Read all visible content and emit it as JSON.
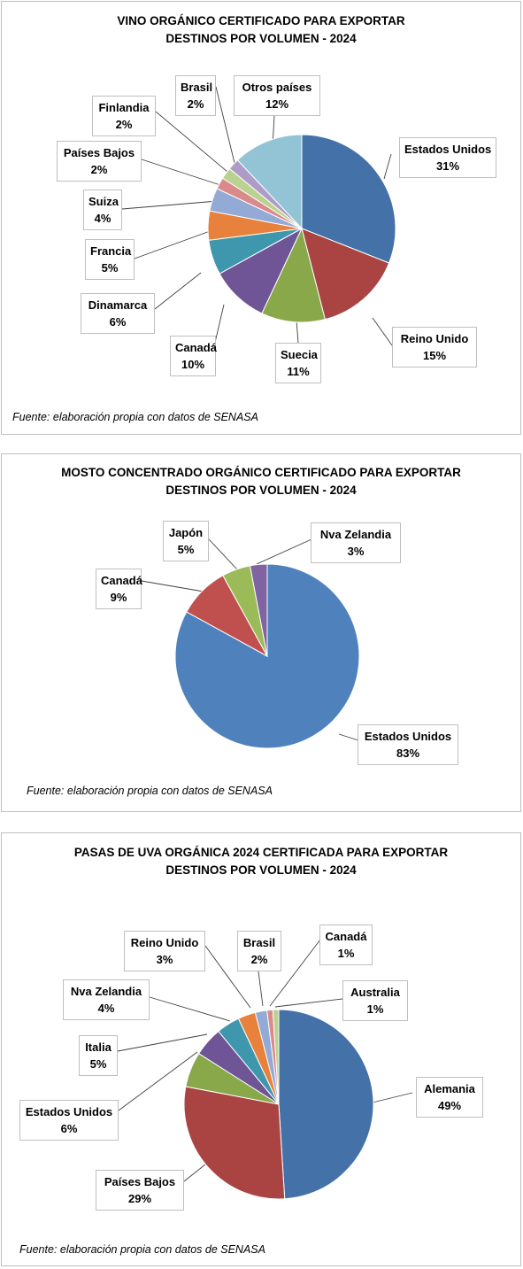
{
  "colors": {
    "estados_unidos_1": "#4472A8",
    "reino_unido": "#A94442",
    "suecia": "#89A84A",
    "canada_1": "#6F5596",
    "dinamarca": "#3F97AE",
    "francia": "#E7813C",
    "suiza": "#93A9D6",
    "paises_bajos_1": "#DA8A8B",
    "finlandia": "#BAD28F",
    "brasil_1": "#AE9CC8",
    "otros": "#93C4D6",
    "estados_unidos_2": "#4F81BD",
    "canada_2": "#C0504D",
    "japon": "#9BBB59",
    "nva_zelandia_2": "#8064A2",
    "alemania": "#4472A8",
    "paises_bajos_3": "#A94442",
    "estados_unidos_3": "#89A84A",
    "italia": "#6F5596",
    "nva_zelandia_3": "#3F97AE",
    "reino_unido_3": "#E7813C",
    "brasil_3": "#93A9D6",
    "canada_3": "#DA8A8B",
    "australia": "#BAD28F"
  },
  "chart_data": [
    {
      "type": "pie",
      "title": "VINO ORGÁNICO CERTIFICADO PARA EXPORTAR",
      "subtitle": "DESTINOS POR VOLUMEN - 2024",
      "source": "Fuente: elaboración propia con datos de SENASA",
      "labels": [
        "Estados Unidos",
        "Reino Unido",
        "Suecia",
        "Canadá",
        "Dinamarca",
        "Francia",
        "Suiza",
        "Países Bajos",
        "Finlandia",
        "Brasil",
        "Otros países"
      ],
      "values": [
        31,
        15,
        11,
        10,
        6,
        5,
        4,
        2,
        2,
        2,
        12
      ],
      "value_labels": [
        "31%",
        "15%",
        "11%",
        "10%",
        "6%",
        "5%",
        "4%",
        "2%",
        "2%",
        "2%",
        "12%"
      ],
      "colors": [
        "estados_unidos_1",
        "reino_unido",
        "suecia",
        "canada_1",
        "dinamarca",
        "francia",
        "suiza",
        "paises_bajos_1",
        "finlandia",
        "brasil_1",
        "otros"
      ]
    },
    {
      "type": "pie",
      "title": "MOSTO CONCENTRADO ORGÁNICO CERTIFICADO PARA EXPORTAR",
      "subtitle": "DESTINOS POR VOLUMEN - 2024",
      "source": "Fuente: elaboración propia con datos de SENASA",
      "labels": [
        "Estados Unidos",
        "Canadá",
        "Japón",
        "Nva Zelandia"
      ],
      "values": [
        83,
        9,
        5,
        3
      ],
      "value_labels": [
        "83%",
        "9%",
        "5%",
        "3%"
      ],
      "colors": [
        "estados_unidos_2",
        "canada_2",
        "japon",
        "nva_zelandia_2"
      ]
    },
    {
      "type": "pie",
      "title": "PASAS DE UVA ORGÁNICA 2024 CERTIFICADA PARA EXPORTAR",
      "subtitle": "DESTINOS POR VOLUMEN - 2024",
      "source": "Fuente: elaboración propia con datos de SENASA",
      "labels": [
        "Alemania",
        "Países Bajos",
        "Estados Unidos",
        "Italia",
        "Nva Zelandia",
        "Reino Unido",
        "Brasil",
        "Canadá",
        "Australia"
      ],
      "values": [
        49,
        29,
        6,
        5,
        4,
        3,
        2,
        1,
        1
      ],
      "value_labels": [
        "49%",
        "29%",
        "6%",
        "5%",
        "4%",
        "3%",
        "2%",
        "1%",
        "1%"
      ],
      "colors": [
        "alemania",
        "paises_bajos_3",
        "estados_unidos_3",
        "italia",
        "nva_zelandia_3",
        "reino_unido_3",
        "brasil_3",
        "canada_3",
        "australia"
      ]
    }
  ]
}
